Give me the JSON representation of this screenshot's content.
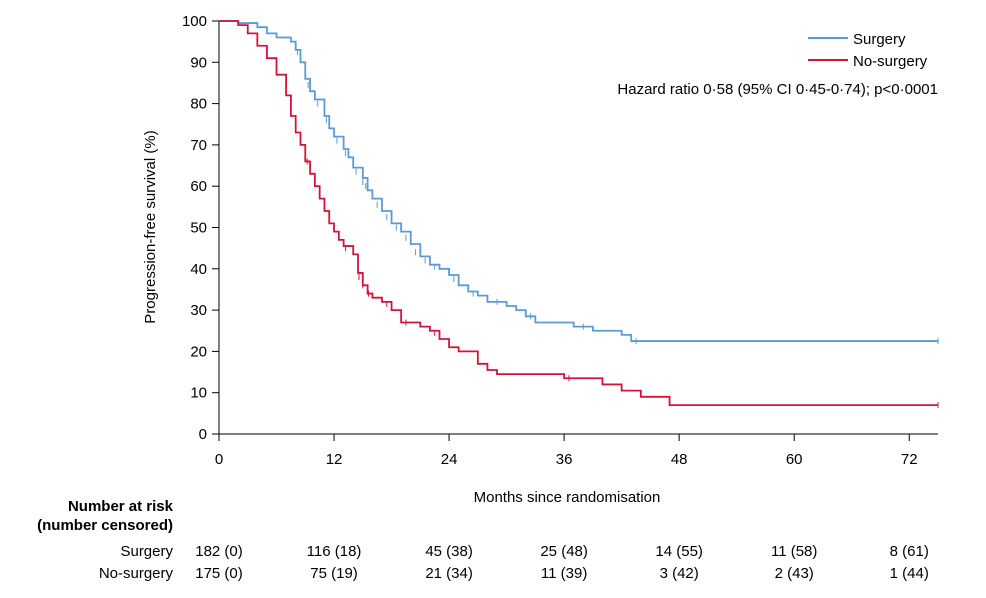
{
  "chart_data": {
    "type": "line",
    "subtype": "kaplan-meier step",
    "xlabel": "Months since randomisation",
    "ylabel": "Progression-free survival (%)",
    "xlim": [
      0,
      75
    ],
    "ylim": [
      0,
      100
    ],
    "xticks": [
      0,
      12,
      24,
      36,
      48,
      60,
      72
    ],
    "yticks": [
      0,
      10,
      20,
      30,
      40,
      50,
      60,
      70,
      80,
      90,
      100
    ],
    "grid": false,
    "legend_position": "top-right",
    "annotation": "Hazard ratio 0·58 (95% CI 0·45-0·74); p<0·0001",
    "series": [
      {
        "name": "Surgery",
        "color": "#5b9bd5",
        "points": [
          [
            0,
            100
          ],
          [
            1.5,
            100
          ],
          [
            2,
            99.5
          ],
          [
            4,
            98.5
          ],
          [
            5,
            97
          ],
          [
            6,
            96
          ],
          [
            7.5,
            95
          ],
          [
            8,
            93
          ],
          [
            8.5,
            90
          ],
          [
            9,
            86
          ],
          [
            9.5,
            83
          ],
          [
            10,
            81
          ],
          [
            11,
            77
          ],
          [
            11.5,
            74
          ],
          [
            12,
            72
          ],
          [
            13,
            69
          ],
          [
            13.5,
            67
          ],
          [
            14,
            64.5
          ],
          [
            15,
            62
          ],
          [
            15.5,
            59
          ],
          [
            16,
            57
          ],
          [
            17,
            54
          ],
          [
            18,
            51
          ],
          [
            19,
            49
          ],
          [
            20,
            46
          ],
          [
            21,
            43
          ],
          [
            22,
            41
          ],
          [
            23,
            40
          ],
          [
            24,
            38.5
          ],
          [
            25,
            36
          ],
          [
            26,
            34.5
          ],
          [
            27,
            33.5
          ],
          [
            28,
            32
          ],
          [
            30,
            31
          ],
          [
            31,
            30
          ],
          [
            32,
            28.5
          ],
          [
            33,
            27
          ],
          [
            37,
            26
          ],
          [
            39,
            25
          ],
          [
            42,
            24
          ],
          [
            43,
            22.5
          ],
          [
            75,
            22.5
          ]
        ],
        "censor_marks": [
          [
            8.2,
            92.5
          ],
          [
            9.3,
            84.5
          ],
          [
            10.3,
            80
          ],
          [
            11.2,
            76
          ],
          [
            12.3,
            71
          ],
          [
            13.2,
            68
          ],
          [
            14.3,
            63.5
          ],
          [
            15,
            61
          ],
          [
            15.3,
            60
          ],
          [
            16.5,
            55.5
          ],
          [
            17.5,
            52.5
          ],
          [
            18.5,
            50
          ],
          [
            19.5,
            47.5
          ],
          [
            20.5,
            44
          ],
          [
            21.5,
            42
          ],
          [
            22.5,
            40.5
          ],
          [
            24.5,
            37.5
          ],
          [
            26.5,
            34
          ],
          [
            29,
            32
          ],
          [
            32.5,
            28.5
          ],
          [
            38,
            26
          ],
          [
            43.5,
            22.5
          ],
          [
            75,
            22.5
          ]
        ]
      },
      {
        "name": "No-surgery",
        "color": "#d2143a",
        "points": [
          [
            0,
            100
          ],
          [
            1.5,
            100
          ],
          [
            2,
            99
          ],
          [
            3,
            97
          ],
          [
            4,
            94
          ],
          [
            5,
            91
          ],
          [
            6,
            87
          ],
          [
            7,
            82
          ],
          [
            7.5,
            77
          ],
          [
            8,
            73
          ],
          [
            8.5,
            70
          ],
          [
            9,
            66
          ],
          [
            9.5,
            63
          ],
          [
            10,
            60
          ],
          [
            10.5,
            57
          ],
          [
            11,
            54
          ],
          [
            11.5,
            51
          ],
          [
            12,
            49
          ],
          [
            12.5,
            47
          ],
          [
            13,
            45.5
          ],
          [
            14,
            43.5
          ],
          [
            14.5,
            39
          ],
          [
            15,
            36
          ],
          [
            15.5,
            34
          ],
          [
            16,
            33
          ],
          [
            17,
            32
          ],
          [
            18,
            30
          ],
          [
            19,
            27
          ],
          [
            21,
            26
          ],
          [
            22,
            25
          ],
          [
            23,
            23
          ],
          [
            24,
            21
          ],
          [
            25,
            20
          ],
          [
            27,
            17
          ],
          [
            28,
            15.5
          ],
          [
            29,
            14.5
          ],
          [
            36,
            13.5
          ],
          [
            40,
            12
          ],
          [
            42,
            10.5
          ],
          [
            44,
            9
          ],
          [
            47,
            7
          ],
          [
            75,
            7
          ]
        ],
        "censor_marks": [
          [
            9.2,
            66
          ],
          [
            13.2,
            45
          ],
          [
            14.6,
            38
          ],
          [
            15,
            36
          ],
          [
            15.6,
            34
          ],
          [
            17.5,
            31.5
          ],
          [
            19.5,
            27
          ],
          [
            22.5,
            24.5
          ],
          [
            28,
            16
          ],
          [
            36.5,
            13.5
          ],
          [
            75,
            7
          ]
        ]
      }
    ],
    "risk_table": {
      "title_line1": "Number at risk",
      "title_line2": "(number censored)",
      "times": [
        0,
        12,
        24,
        36,
        48,
        60,
        72
      ],
      "rows": [
        {
          "label": "Surgery",
          "values": [
            "182 (0)",
            "116 (18)",
            "45 (38)",
            "25 (48)",
            "14 (55)",
            "11 (58)",
            "8 (61)"
          ]
        },
        {
          "label": "No-surgery",
          "values": [
            "175 (0)",
            "75 (19)",
            "21 (34)",
            "11 (39)",
            "3 (42)",
            "2 (43)",
            "1 (44)"
          ]
        }
      ]
    }
  }
}
